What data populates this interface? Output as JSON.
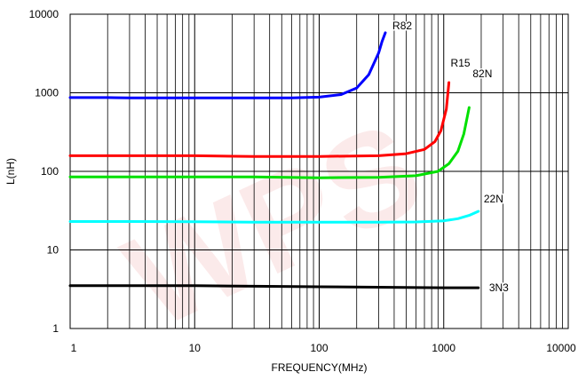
{
  "chart_data": {
    "type": "line",
    "title": "",
    "xlabel": "FREQUENCY(MHz)",
    "ylabel": "L(nH)",
    "x_scale": "log",
    "y_scale": "log",
    "xlim": [
      1,
      10000
    ],
    "ylim": [
      1,
      10000
    ],
    "x_ticks": [
      "1",
      "10",
      "100",
      "1000",
      "10000"
    ],
    "y_ticks": [
      "1",
      "10",
      "100",
      "1000",
      "10000"
    ],
    "grid": true,
    "legend": "none",
    "series": [
      {
        "name": "R82",
        "color": "#0000ff",
        "x": [
          1,
          2,
          3,
          5,
          10,
          30,
          60,
          100,
          150,
          200,
          250,
          300,
          320,
          340
        ],
        "y": [
          870,
          870,
          860,
          860,
          860,
          860,
          860,
          880,
          950,
          1150,
          1700,
          3200,
          4500,
          5800
        ]
      },
      {
        "name": "R15",
        "color": "#ff0000",
        "x": [
          1,
          3,
          10,
          30,
          100,
          300,
          500,
          700,
          850,
          950,
          1050,
          1100
        ],
        "y": [
          158,
          158,
          158,
          155,
          155,
          158,
          168,
          190,
          240,
          330,
          620,
          1350
        ]
      },
      {
        "name": "82N",
        "color": "#00e000",
        "x": [
          1,
          3,
          10,
          30,
          100,
          300,
          600,
          900,
          1100,
          1300,
          1450,
          1600
        ],
        "y": [
          85,
          85,
          85,
          85,
          83,
          84,
          88,
          100,
          125,
          180,
          300,
          650
        ]
      },
      {
        "name": "22N",
        "color": "#00ffff",
        "x": [
          1,
          3,
          10,
          30,
          100,
          300,
          600,
          1000,
          1300,
          1600,
          1900
        ],
        "y": [
          23,
          23,
          22.8,
          22.6,
          22.5,
          22.5,
          22.7,
          23.5,
          25,
          27.5,
          31
        ]
      },
      {
        "name": "3N3",
        "color": "#000000",
        "x": [
          1,
          3,
          10,
          30,
          100,
          300,
          1000,
          1500,
          1900
        ],
        "y": [
          3.5,
          3.5,
          3.5,
          3.45,
          3.4,
          3.35,
          3.3,
          3.3,
          3.3
        ]
      }
    ]
  },
  "watermark": "WPS"
}
